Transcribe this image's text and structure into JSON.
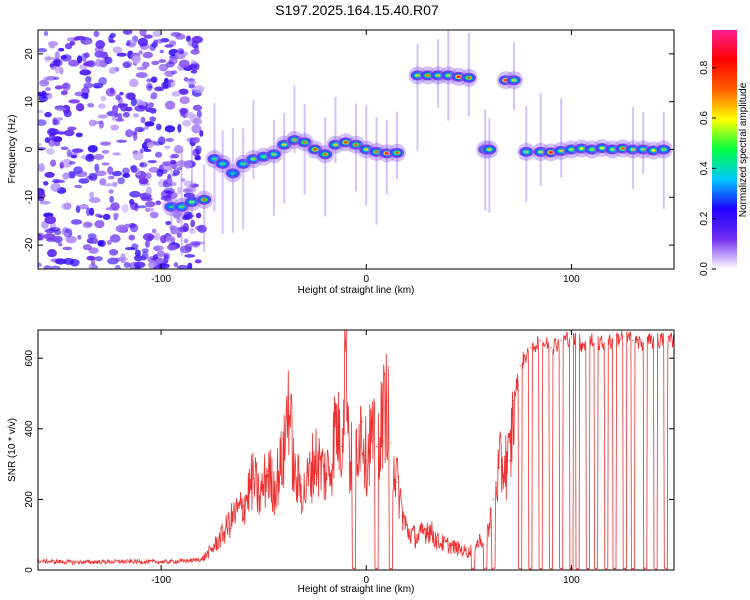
{
  "title": "S197.2025.164.15.40.R07",
  "chart_data": [
    {
      "type": "heatmap",
      "xlabel": "Height of straight line (km)",
      "ylabel": "Frequency (Hz)",
      "xlim": [
        -160,
        150
      ],
      "ylim": [
        -25,
        25
      ],
      "xticks": [
        -100,
        0,
        100
      ],
      "yticks": [
        -20,
        -10,
        0,
        10,
        20
      ],
      "colorbar": {
        "label": "Normalized spectral amplitude",
        "range": [
          0,
          0.95
        ],
        "ticks": [
          0.0,
          0.2,
          0.4,
          0.6,
          0.8
        ],
        "tick_labels": [
          "0.0",
          "0.2",
          "0.4",
          "0.6",
          "0.8"
        ],
        "colors": [
          "#ffffff",
          "#7030f0",
          "#2000ff",
          "#00c8ff",
          "#00ff40",
          "#ffff00",
          "#ff6000",
          "#ff0000",
          "#ff2090"
        ]
      },
      "noise_region_x": [
        -160,
        -80
      ],
      "ridge": [
        {
          "x": -95,
          "y": -12,
          "amp": 0.45
        },
        {
          "x": -90,
          "y": -12,
          "amp": 0.5
        },
        {
          "x": -85,
          "y": -11,
          "amp": 0.55
        },
        {
          "x": -79,
          "y": -10.5,
          "amp": 0.7
        },
        {
          "x": -74,
          "y": -2,
          "amp": 0.5
        },
        {
          "x": -70,
          "y": -3,
          "amp": 0.5
        },
        {
          "x": -65,
          "y": -5,
          "amp": 0.45
        },
        {
          "x": -60,
          "y": -3,
          "amp": 0.5
        },
        {
          "x": -55,
          "y": -2,
          "amp": 0.55
        },
        {
          "x": -50,
          "y": -1.5,
          "amp": 0.5
        },
        {
          "x": -45,
          "y": -1,
          "amp": 0.55
        },
        {
          "x": -40,
          "y": 1,
          "amp": 0.6
        },
        {
          "x": -35,
          "y": 2,
          "amp": 0.65
        },
        {
          "x": -30,
          "y": 1.5,
          "amp": 0.7
        },
        {
          "x": -25,
          "y": 0,
          "amp": 0.75
        },
        {
          "x": -20,
          "y": -1,
          "amp": 0.7
        },
        {
          "x": -15,
          "y": 1,
          "amp": 0.6
        },
        {
          "x": -10,
          "y": 1.5,
          "amp": 0.75
        },
        {
          "x": -5,
          "y": 1,
          "amp": 0.7
        },
        {
          "x": 0,
          "y": 0,
          "amp": 0.6
        },
        {
          "x": 5,
          "y": -0.5,
          "amp": 0.7
        },
        {
          "x": 10,
          "y": -0.8,
          "amp": 0.9
        },
        {
          "x": 15,
          "y": -0.7,
          "amp": 0.7
        },
        {
          "x": 25,
          "y": 15.5,
          "amp": 0.6
        },
        {
          "x": 30,
          "y": 15.5,
          "amp": 0.7
        },
        {
          "x": 35,
          "y": 15.5,
          "amp": 0.6
        },
        {
          "x": 40,
          "y": 15.5,
          "amp": 0.6
        },
        {
          "x": 45,
          "y": 15.2,
          "amp": 0.9
        },
        {
          "x": 50,
          "y": 15,
          "amp": 0.7
        },
        {
          "x": 58,
          "y": 0,
          "amp": 0.85
        },
        {
          "x": 60,
          "y": 0,
          "amp": 0.6
        },
        {
          "x": 68,
          "y": 14.5,
          "amp": 0.9
        },
        {
          "x": 72,
          "y": 14.5,
          "amp": 0.6
        },
        {
          "x": 78,
          "y": -0.5,
          "amp": 0.55
        },
        {
          "x": 85,
          "y": -0.5,
          "amp": 0.6
        },
        {
          "x": 90,
          "y": -0.6,
          "amp": 0.9
        },
        {
          "x": 95,
          "y": -0.3,
          "amp": 0.6
        },
        {
          "x": 100,
          "y": 0,
          "amp": 0.55
        },
        {
          "x": 105,
          "y": 0.2,
          "amp": 0.6
        },
        {
          "x": 110,
          "y": 0,
          "amp": 0.55
        },
        {
          "x": 115,
          "y": 0.3,
          "amp": 0.6
        },
        {
          "x": 120,
          "y": 0,
          "amp": 0.55
        },
        {
          "x": 125,
          "y": 0.2,
          "amp": 0.75
        },
        {
          "x": 130,
          "y": 0,
          "amp": 0.6
        },
        {
          "x": 135,
          "y": 0,
          "amp": 0.55
        },
        {
          "x": 140,
          "y": -0.2,
          "amp": 0.6
        },
        {
          "x": 145,
          "y": 0,
          "amp": 0.55
        }
      ]
    },
    {
      "type": "line",
      "xlabel": "Height of straight line (km)",
      "ylabel": "SNR (10 * v/v)",
      "xlim": [
        -160,
        150
      ],
      "ylim": [
        0,
        680
      ],
      "xticks": [
        -100,
        0,
        100
      ],
      "yticks": [
        0,
        200,
        400,
        600
      ],
      "color": "#ee3030",
      "series": [
        {
          "x": [
            -160,
            -140,
            -120,
            -100,
            -90,
            -80,
            -75,
            -70,
            -65,
            -60,
            -55,
            -52,
            -48,
            -45,
            -40,
            -38,
            -35,
            -30,
            -25,
            -20,
            -17,
            -15,
            -12,
            -10,
            -8,
            -5,
            -2,
            0,
            2,
            5,
            8,
            10,
            12,
            15,
            18,
            20,
            25,
            30,
            35,
            40,
            45,
            50,
            55,
            60,
            62,
            65,
            68,
            70,
            72,
            75,
            80,
            85,
            90,
            95,
            100,
            105,
            110,
            115,
            120,
            125,
            130,
            135,
            140,
            145,
            150
          ],
          "y": [
            25,
            22,
            24,
            23,
            25,
            30,
            60,
            100,
            150,
            180,
            260,
            200,
            280,
            230,
            330,
            500,
            260,
            220,
            320,
            270,
            300,
            420,
            350,
            680,
            300,
            360,
            420,
            310,
            380,
            350,
            430,
            480,
            360,
            250,
            150,
            110,
            90,
            120,
            80,
            70,
            60,
            50,
            80,
            120,
            200,
            290,
            300,
            310,
            480,
            580,
            630,
            650,
            630,
            650,
            660,
            640,
            650,
            640,
            650,
            660,
            650,
            640,
            650,
            650,
            655
          ]
        }
      ],
      "dropouts_to_zero_x": [
        -6,
        5,
        12,
        52,
        58,
        62,
        75,
        80,
        85,
        90,
        95,
        100,
        103,
        108,
        112,
        117,
        121,
        126,
        130,
        136,
        141,
        146
      ]
    }
  ]
}
